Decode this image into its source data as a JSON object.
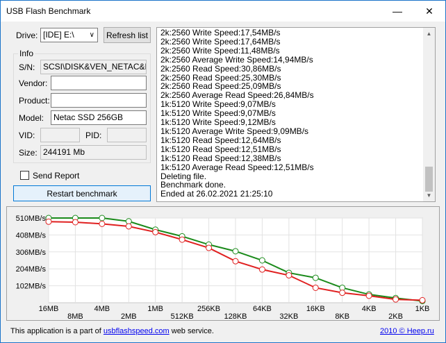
{
  "window": {
    "title": "USB Flash Benchmark",
    "minimize_glyph": "—",
    "close_glyph": "✕"
  },
  "drive": {
    "label": "Drive:",
    "selected": "[IDE] E:\\",
    "refresh_label": "Refresh list"
  },
  "info": {
    "group_label": "Info",
    "sn_label": "S/N:",
    "sn_value": "SCSI\\DISK&VEN_NETAC&PR(",
    "vendor_label": "Vendor:",
    "vendor_value": "",
    "product_label": "Product:",
    "product_value": "",
    "model_label": "Model:",
    "model_value": "Netac SSD 256GB",
    "vid_label": "VID:",
    "vid_value": "",
    "pid_label": "PID:",
    "pid_value": "",
    "size_label": "Size:",
    "size_value": "244191 Mb"
  },
  "send_report": {
    "label": "Send Report",
    "checked": false
  },
  "restart_label": "Restart benchmark",
  "log": [
    "2k:2560 Write Speed:17,54MB/s",
    "2k:2560 Write Speed:17,64MB/s",
    "2k:2560 Write Speed:11,48MB/s",
    "2k:2560 Average Write Speed:14,94MB/s",
    "2k:2560 Read Speed:30,86MB/s",
    "2k:2560 Read Speed:25,30MB/s",
    "2k:2560 Read Speed:25,09MB/s",
    "2k:2560 Average Read Speed:26,84MB/s",
    "1k:5120 Write Speed:9,07MB/s",
    "1k:5120 Write Speed:9,07MB/s",
    "1k:5120 Write Speed:9,12MB/s",
    "1k:5120 Average Write Speed:9,09MB/s",
    "1k:5120 Read Speed:12,64MB/s",
    "1k:5120 Read Speed:12,51MB/s",
    "1k:5120 Read Speed:12,38MB/s",
    "1k:5120 Average Read Speed:12,51MB/s",
    "Deleting file.",
    "Benchmark done.",
    "Ended at 26.02.2021 21:25:10"
  ],
  "chart_data": {
    "type": "line",
    "y_ticks": [
      "510MB/s",
      "408MB/s",
      "306MB/s",
      "204MB/s",
      "102MB/s"
    ],
    "y_tick_values": [
      510,
      408,
      306,
      204,
      102
    ],
    "ylim": [
      0,
      510
    ],
    "x": [
      "16MB",
      "8MB",
      "4MB",
      "2MB",
      "1MB",
      "512KB",
      "256KB",
      "128KB",
      "64KB",
      "32KB",
      "16KB",
      "8KB",
      "4KB",
      "2KB",
      "1KB"
    ],
    "series": [
      {
        "color": "#1a8a1a",
        "values": [
          510,
          510,
          510,
          490,
          440,
          400,
          350,
          310,
          255,
          180,
          150,
          90,
          50,
          28,
          10
        ]
      },
      {
        "color": "#e02020",
        "values": [
          488,
          485,
          475,
          460,
          425,
          380,
          330,
          250,
          200,
          165,
          90,
          60,
          42,
          20,
          15
        ]
      }
    ],
    "grid": true,
    "marker": "circle"
  },
  "footer": {
    "prefix": "This application is a part of ",
    "link": "usbflashspeed.com",
    "suffix": " web service.",
    "copyright_link": "2010 © Heep.ru"
  }
}
